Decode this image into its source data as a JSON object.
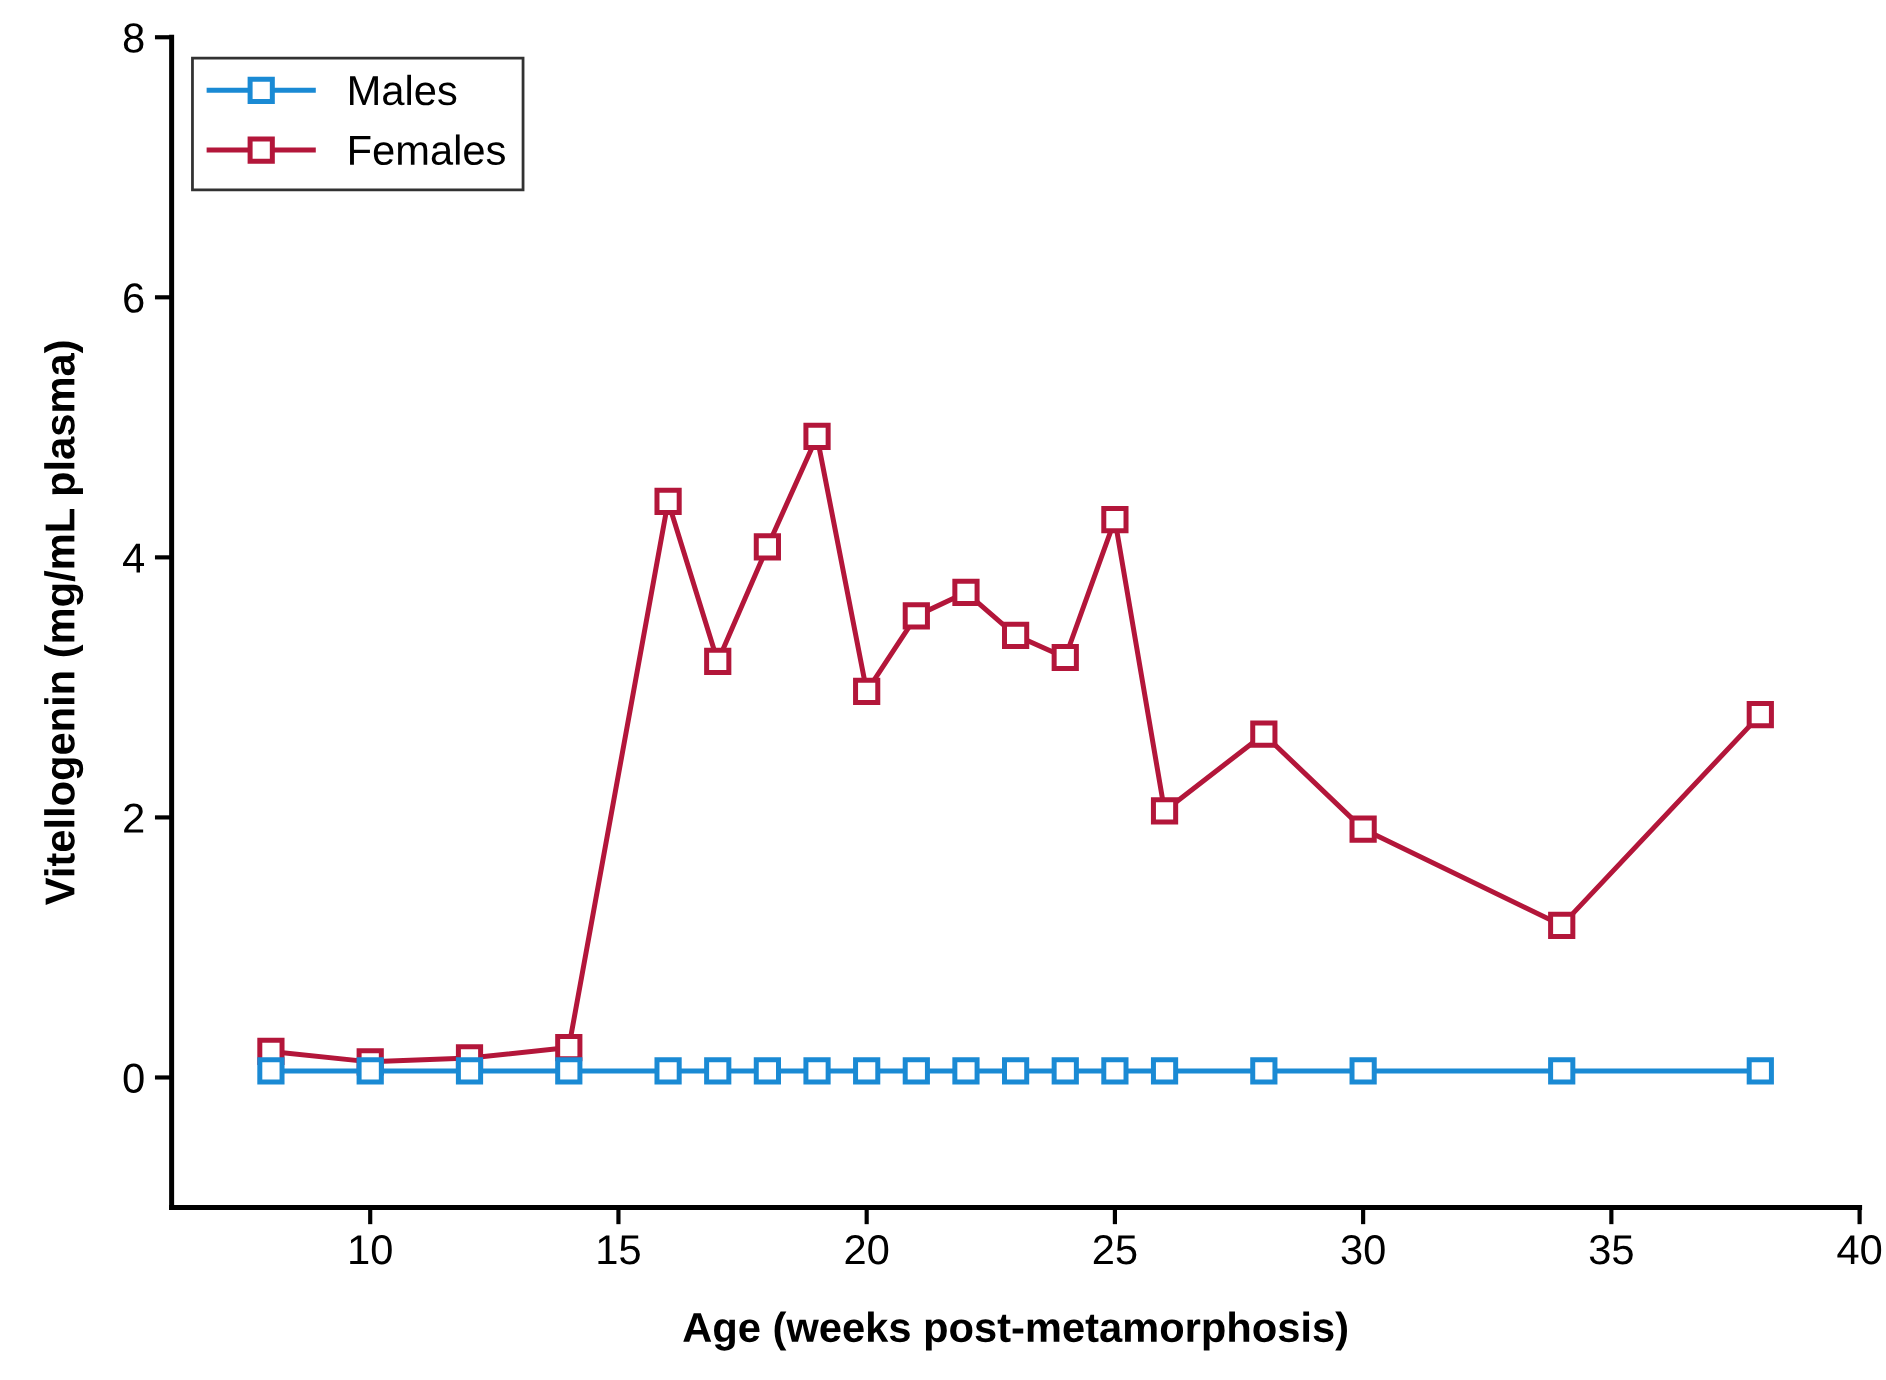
{
  "chart_data": {
    "type": "line",
    "xlabel": "Age (weeks post-metamorphosis)",
    "ylabel": "Vitellogenin (mg/mL plasma)",
    "xlim": [
      6,
      40
    ],
    "xticks": [
      10,
      15,
      20,
      25,
      30,
      35,
      40
    ],
    "ylim": [
      -1,
      8
    ],
    "yticks": [
      0,
      2,
      4,
      6,
      8
    ],
    "marker": "square",
    "line_style": "solid",
    "legend": "top left",
    "grid": false,
    "series": [
      {
        "name": "Males",
        "color": "#1a8ad4",
        "x": [
          8,
          10,
          12,
          14,
          16,
          17,
          18,
          19,
          20,
          21,
          22,
          23,
          24,
          25,
          26,
          28,
          30,
          34,
          38
        ],
        "values": [
          0.05,
          0.05,
          0.05,
          0.05,
          0.05,
          0.05,
          0.05,
          0.05,
          0.05,
          0.05,
          0.05,
          0.05,
          0.05,
          0.05,
          0.05,
          0.05,
          0.05,
          0.05,
          0.05
        ]
      },
      {
        "name": "Females",
        "color": "#b3163a",
        "x": [
          8,
          10,
          12,
          14,
          16,
          17,
          18,
          19,
          20,
          21,
          22,
          23,
          24,
          25,
          26,
          28,
          30,
          34,
          38
        ],
        "values": [
          0.2,
          0.12,
          0.15,
          0.23,
          4.43,
          3.2,
          4.08,
          4.93,
          2.97,
          3.55,
          3.73,
          3.4,
          3.23,
          4.29,
          2.05,
          2.64,
          1.91,
          1.17,
          2.79
        ]
      }
    ]
  }
}
